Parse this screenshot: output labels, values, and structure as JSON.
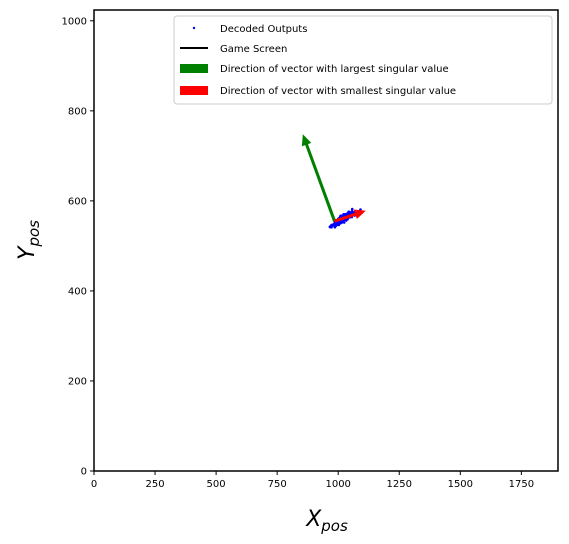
{
  "chart_data": {
    "type": "scatter",
    "xlabel": {
      "main": "X",
      "sub": "pos"
    },
    "ylabel": {
      "main": "Y",
      "sub": "pos"
    },
    "xlim": [
      0,
      1900
    ],
    "ylim": [
      0,
      1024
    ],
    "xticks": [
      0,
      250,
      500,
      750,
      1000,
      1250,
      1500,
      1750
    ],
    "yticks": [
      0,
      200,
      400,
      600,
      800,
      1000
    ],
    "legend_position": "top-right",
    "legend": [
      {
        "label": "Decoded Outputs",
        "kind": "point",
        "color": "#0000ff"
      },
      {
        "label": "Game Screen",
        "kind": "line",
        "color": "#000000"
      },
      {
        "label": "Direction of vector with largest singular value",
        "kind": "patch",
        "color": "#008000"
      },
      {
        "label": "Direction of vector with smallest singular value",
        "kind": "patch",
        "color": "#ff0000"
      }
    ],
    "scatter_center": [
      1020,
      560
    ],
    "scatter_spread": {
      "along": 75,
      "across": 6,
      "slope": 0.38
    },
    "scatter_count": 220,
    "arrows": [
      {
        "name": "largest-singular-vector",
        "color": "#008000",
        "from": [
          985,
          555
        ],
        "to": [
          855,
          748
        ]
      },
      {
        "name": "smallest-singular-vector",
        "color": "#ff0000",
        "from": [
          985,
          555
        ],
        "to": [
          1113,
          578
        ]
      }
    ]
  }
}
